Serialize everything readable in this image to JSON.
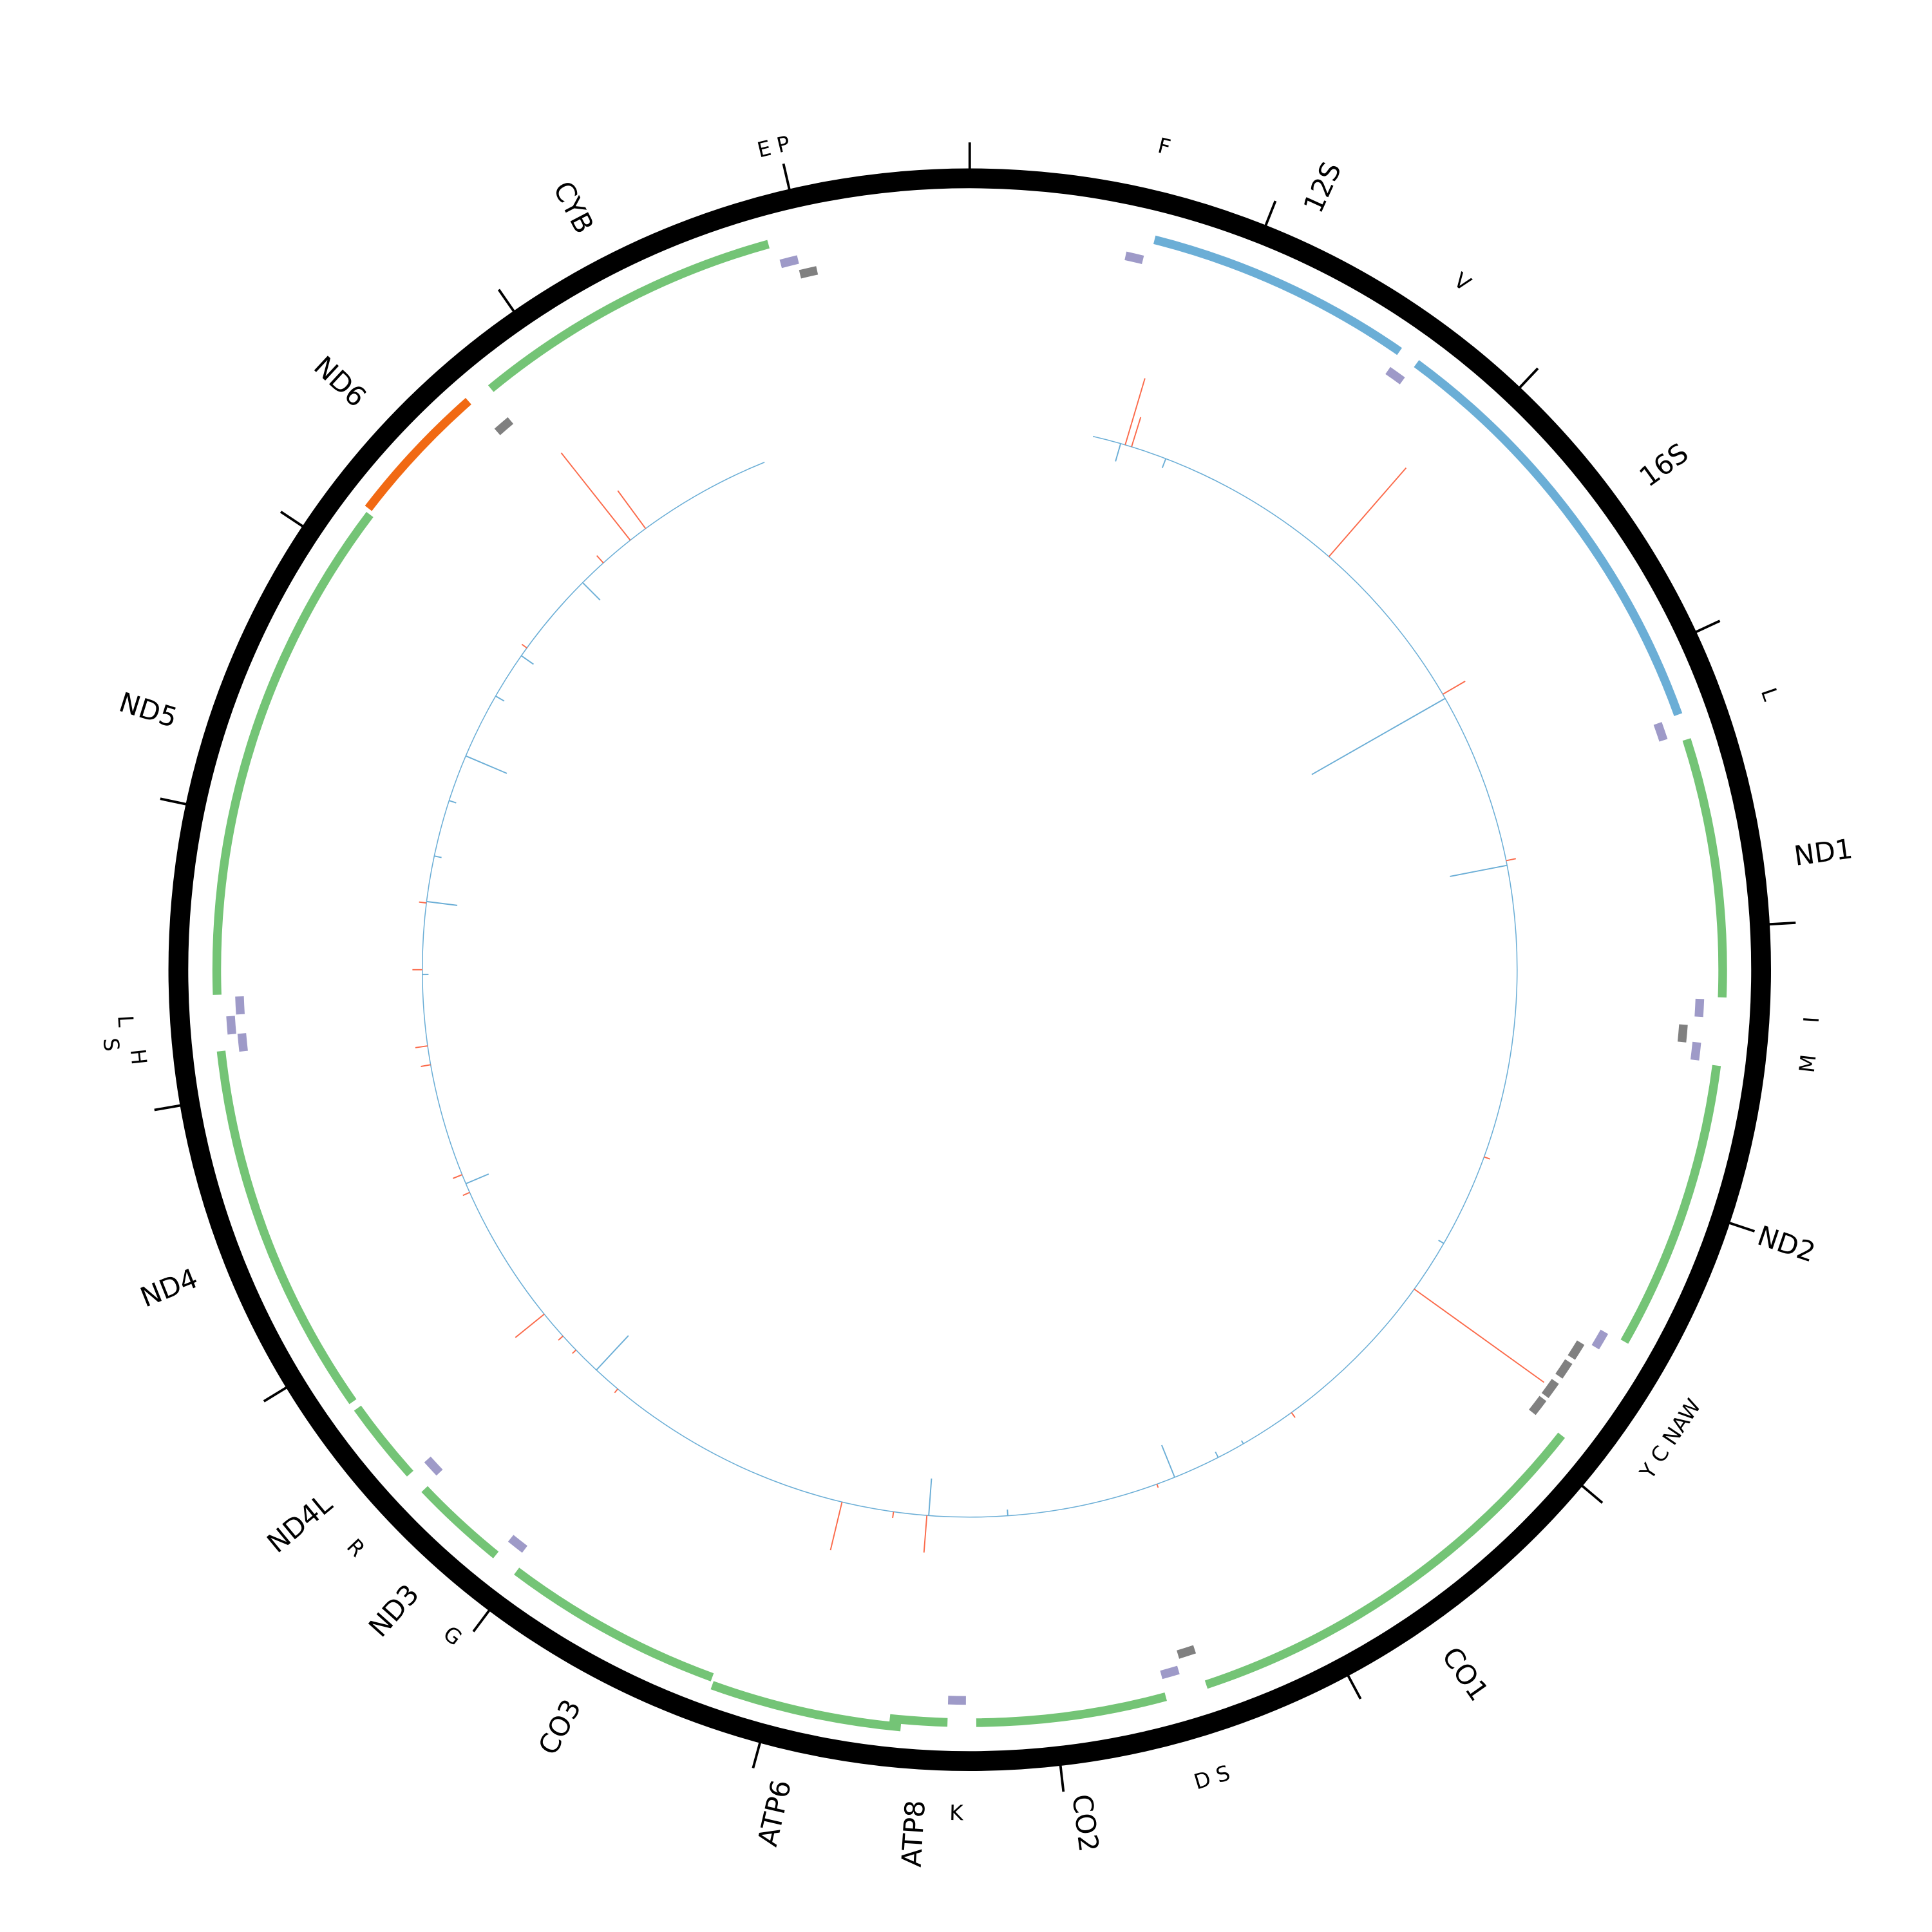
{
  "genome_length_bp": 16600,
  "tick_interval_bp": 1000,
  "colors": {
    "ring": "#000000",
    "protein_coding": "#74c476",
    "rrna": "#6baed6",
    "l_strand_gene": "#f16913",
    "trna_h": "#9e9ac8",
    "trna_l": "#808080",
    "positive_signal": "#fb6a4a",
    "negative_signal": "#6baed6",
    "baseline": "#6baed6"
  },
  "genes": [
    {
      "name": "12S",
      "start": 655,
      "end": 1605,
      "type": "rrna",
      "track": 0,
      "label_pos": 1125
    },
    {
      "name": "16S",
      "start": 1678,
      "end": 3237,
      "type": "rrna",
      "track": 0,
      "label_pos": 2495
    },
    {
      "name": "ND1",
      "start": 3329,
      "end": 4247,
      "type": "protein_coding",
      "track": 0,
      "label_pos": 3795
    },
    {
      "name": "ND2",
      "start": 4487,
      "end": 5515,
      "type": "protein_coding",
      "track": 0,
      "label_pos": 5012
    },
    {
      "name": "CO1",
      "start": 5911,
      "end": 7456,
      "type": "protein_coding",
      "track": 0,
      "label_pos": 6686
    },
    {
      "name": "CO2",
      "start": 7604,
      "end": 8277,
      "type": "protein_coding",
      "track": 0,
      "label_pos": 7950
    },
    {
      "name": "ATP8",
      "start": 8378,
      "end": 8581,
      "type": "protein_coding",
      "track": 0,
      "label_pos": 8466
    },
    {
      "name": "ATP6",
      "start": 8540,
      "end": 9213,
      "type": "protein_coding",
      "track": 1,
      "label_pos": 8895
    },
    {
      "name": "CO3",
      "start": 9222,
      "end": 10006,
      "type": "protein_coding",
      "track": 0,
      "label_pos": 9605
    },
    {
      "name": "ND3",
      "start": 10098,
      "end": 10439,
      "type": "protein_coding",
      "track": 0,
      "label_pos": 10228
    },
    {
      "name": "ND4L",
      "start": 10513,
      "end": 10808,
      "type": "protein_coding",
      "track": 0,
      "label_pos": 10620
    },
    {
      "name": "ND4",
      "start": 10836,
      "end": 12164,
      "type": "protein_coding",
      "track": 0,
      "label_pos": 11445
    },
    {
      "name": "ND5",
      "start": 12362,
      "end": 14165,
      "type": "protein_coding",
      "track": 0,
      "label_pos": 13253
    },
    {
      "name": "ND6",
      "start": 14179,
      "end": 14691,
      "type": "l_strand_gene",
      "track": 0,
      "label_pos": 14429
    },
    {
      "name": "CYB",
      "start": 14779,
      "end": 15885,
      "type": "protein_coding",
      "track": 0,
      "label_pos": 15328
    }
  ],
  "trna_blocks": [
    {
      "pos": 600,
      "strand": "H"
    },
    {
      "pos": 1642,
      "strand": "H"
    },
    {
      "pos": 3274,
      "strand": "H"
    },
    {
      "pos": 4288,
      "strand": "H"
    },
    {
      "pos": 4385,
      "strand": "L"
    },
    {
      "pos": 4445,
      "strand": "H"
    },
    {
      "pos": 5552,
      "strand": "H"
    },
    {
      "pos": 5630,
      "strand": "L"
    },
    {
      "pos": 5713,
      "strand": "L"
    },
    {
      "pos": 5801,
      "strand": "L"
    },
    {
      "pos": 5879,
      "strand": "L"
    },
    {
      "pos": 7488,
      "strand": "L"
    },
    {
      "pos": 7567,
      "strand": "H"
    },
    {
      "pos": 8346,
      "strand": "H"
    },
    {
      "pos": 10062,
      "strand": "H"
    },
    {
      "pos": 10477,
      "strand": "H"
    },
    {
      "pos": 12187,
      "strand": "H"
    },
    {
      "pos": 12252,
      "strand": "H",
      "offset": true
    },
    {
      "pos": 12321,
      "strand": "H"
    },
    {
      "pos": 14728,
      "strand": "L"
    },
    {
      "pos": 15941,
      "strand": "H"
    },
    {
      "pos": 16000,
      "strand": "L"
    }
  ],
  "trna_labels": [
    {
      "text": "F",
      "pos": 613
    },
    {
      "text": "V",
      "pos": 1642
    },
    {
      "text": "L",
      "pos": 3274
    },
    {
      "text": "I",
      "pos": 4307
    },
    {
      "text": "M",
      "pos": 4445
    },
    {
      "text": "Y C NAW",
      "pos": 5709
    },
    {
      "text": "D S",
      "pos": 7530
    },
    {
      "text": "K",
      "pos": 8342
    },
    {
      "text": "G",
      "pos": 10044
    },
    {
      "text": "R",
      "pos": 10454
    },
    {
      "text": "L",
      "pos": 12289
    },
    {
      "text": "S",
      "pos": 12220
    },
    {
      "text": "H",
      "pos": 12174
    },
    {
      "text": "E P",
      "pos": 15982
    }
  ],
  "signal_track": {
    "start": 600,
    "end": 15585,
    "points": [
      {
        "pos": 761,
        "value": 56
      },
      {
        "pos": 793,
        "value": 25
      },
      {
        "pos": 1891,
        "value": 95
      },
      {
        "pos": 2757,
        "value": 21
      },
      {
        "pos": 3620,
        "value": 8
      },
      {
        "pos": 5072,
        "value": 5
      },
      {
        "pos": 5796,
        "value": 129
      },
      {
        "pos": 6640,
        "value": 5
      },
      {
        "pos": 7378,
        "value": 3
      },
      {
        "pos": 8507,
        "value": 30
      },
      {
        "pos": 8669,
        "value": 5
      },
      {
        "pos": 8922,
        "value": 40
      },
      {
        "pos": 10145,
        "value": 4
      },
      {
        "pos": 10421,
        "value": 4
      },
      {
        "pos": 10513,
        "value": 5
      },
      {
        "pos": 10652,
        "value": 30
      },
      {
        "pos": 11343,
        "value": 6
      },
      {
        "pos": 11436,
        "value": 8
      },
      {
        "pos": 11989,
        "value": 8
      },
      {
        "pos": 12081,
        "value": 10
      },
      {
        "pos": 12450,
        "value": 8
      },
      {
        "pos": 12773,
        "value": 6
      },
      {
        "pos": 14110,
        "value": 5
      },
      {
        "pos": 14663,
        "value": 8
      },
      {
        "pos": 14833,
        "value": 90
      },
      {
        "pos": 14926,
        "value": 38
      },
      {
        "pos": 738,
        "value": -15
      },
      {
        "pos": 968,
        "value": -8
      },
      {
        "pos": 2780,
        "value": -124
      },
      {
        "pos": 3643,
        "value": -47
      },
      {
        "pos": 5533,
        "value": -5
      },
      {
        "pos": 6917,
        "value": -3
      },
      {
        "pos": 7055,
        "value": -5
      },
      {
        "pos": 7286,
        "value": -28
      },
      {
        "pos": 8116,
        "value": -5
      },
      {
        "pos": 8498,
        "value": -30
      },
      {
        "pos": 10283,
        "value": -38
      },
      {
        "pos": 11389,
        "value": -20
      },
      {
        "pos": 12427,
        "value": -5
      },
      {
        "pos": 12780,
        "value": -25
      },
      {
        "pos": 13003,
        "value": -6
      },
      {
        "pos": 13280,
        "value": -6
      },
      {
        "pos": 13510,
        "value": -36
      },
      {
        "pos": 13833,
        "value": -8
      },
      {
        "pos": 14064,
        "value": -12
      },
      {
        "pos": 14525,
        "value": -20
      }
    ]
  }
}
